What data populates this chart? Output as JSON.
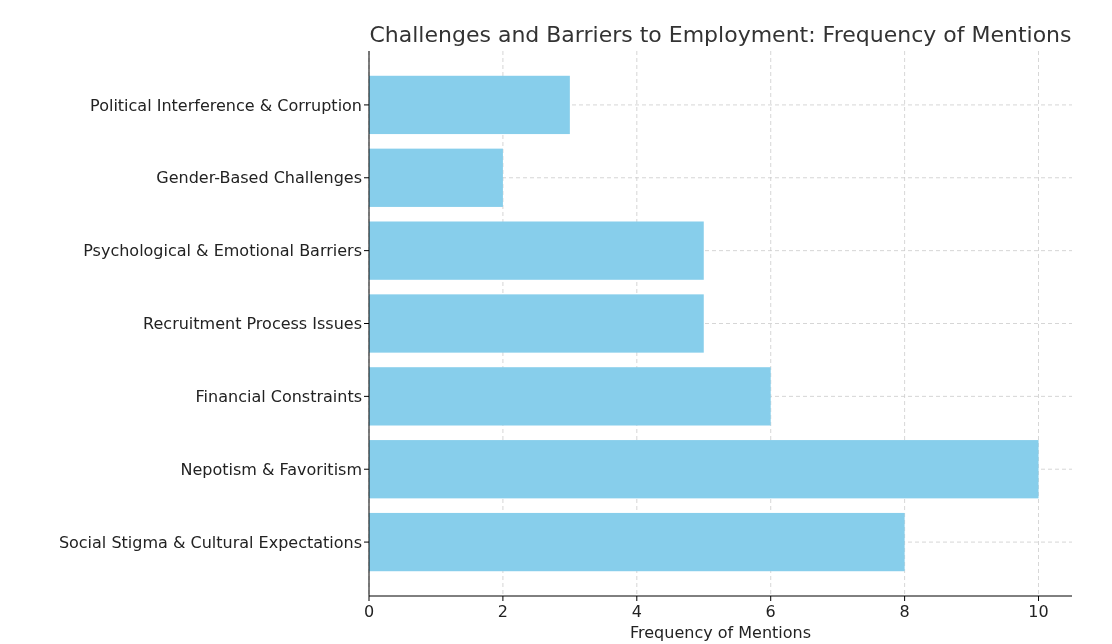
{
  "chart_data": {
    "type": "bar",
    "orientation": "horizontal",
    "title": "Challenges and Barriers to Employment: Frequency of Mentions",
    "xlabel": "Frequency of Mentions",
    "categories": [
      "Political Interference & Corruption",
      "Gender-Based Challenges",
      "Psychological & Emotional Barriers",
      "Recruitment Process Issues",
      "Financial Constraints",
      "Nepotism & Favoritism",
      "Social Stigma & Cultural Expectations"
    ],
    "values": [
      3,
      2,
      5,
      5,
      6,
      10,
      8
    ],
    "color": "#87ceeb",
    "xlim": [
      0,
      10.5
    ],
    "xticks": [
      0,
      2,
      4,
      6,
      8,
      10
    ],
    "grid": true
  }
}
